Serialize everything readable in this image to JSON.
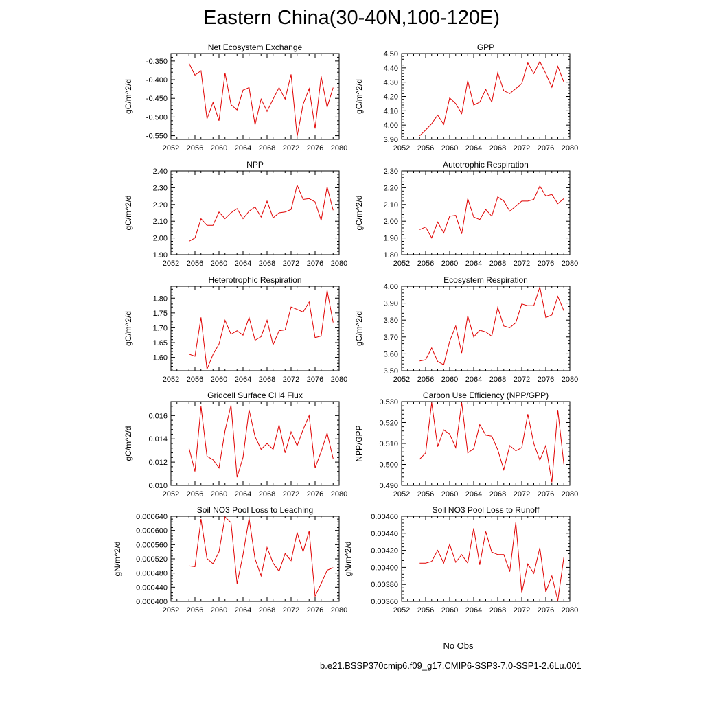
{
  "title": "Eastern China(30-40N,100-120E)",
  "legend": {
    "obs_label": "No Obs",
    "obs_color": "#2b2bd6",
    "run_label": "b.e21.BSSP370cmip6.f09_g17.CMIP6-SSP3-7.0-SSP1-2.6Lu.001",
    "run_color": "#e00000"
  },
  "chart_data": [
    {
      "type": "line",
      "title": "Net Ecosystem Exchange",
      "ylabel": "gC/m^2/d",
      "xlim": [
        2052,
        2080
      ],
      "ylim": [
        -0.56,
        -0.33
      ],
      "xticks": [
        "2052",
        "2056",
        "2060",
        "2064",
        "2068",
        "2072",
        "2076",
        "2080"
      ],
      "yticks": [
        "-0.550",
        "-0.500",
        "-0.450",
        "-0.400",
        "-0.350"
      ],
      "ytick_values": [
        -0.55,
        -0.5,
        -0.45,
        -0.4,
        -0.35
      ],
      "series": [
        {
          "color": "#e00000",
          "x": [
            2055,
            2056,
            2057,
            2058,
            2059,
            2060,
            2061,
            2062,
            2063,
            2064,
            2065,
            2066,
            2067,
            2068,
            2069,
            2070,
            2071,
            2072,
            2073,
            2074,
            2075,
            2076,
            2077,
            2078,
            2079
          ],
          "y": [
            -0.356,
            -0.388,
            -0.376,
            -0.505,
            -0.461,
            -0.51,
            -0.382,
            -0.467,
            -0.481,
            -0.428,
            -0.421,
            -0.521,
            -0.452,
            -0.485,
            -0.452,
            -0.421,
            -0.452,
            -0.386,
            -0.552,
            -0.466,
            -0.424,
            -0.531,
            -0.391,
            -0.474,
            -0.421
          ]
        }
      ]
    },
    {
      "type": "line",
      "title": "GPP",
      "ylabel": "gC/m^2/d",
      "xlim": [
        2052,
        2080
      ],
      "ylim": [
        3.9,
        4.5
      ],
      "xticks": [
        "2052",
        "2056",
        "2060",
        "2064",
        "2068",
        "2072",
        "2076",
        "2080"
      ],
      "yticks": [
        "3.90",
        "4.00",
        "4.10",
        "4.20",
        "4.30",
        "4.40",
        "4.50"
      ],
      "ytick_values": [
        3.9,
        4.0,
        4.1,
        4.2,
        4.3,
        4.4,
        4.5
      ],
      "series": [
        {
          "color": "#e00000",
          "x": [
            2055,
            2056,
            2057,
            2058,
            2059,
            2060,
            2061,
            2062,
            2063,
            2064,
            2065,
            2066,
            2067,
            2068,
            2069,
            2070,
            2071,
            2072,
            2073,
            2074,
            2075,
            2076,
            2077,
            2078,
            2079
          ],
          "y": [
            3.925,
            3.965,
            4.01,
            4.07,
            4.005,
            4.19,
            4.15,
            4.08,
            4.31,
            4.14,
            4.16,
            4.25,
            4.16,
            4.365,
            4.24,
            4.22,
            4.255,
            4.29,
            4.435,
            4.36,
            4.445,
            4.36,
            4.265,
            4.41,
            4.3
          ]
        }
      ]
    },
    {
      "type": "line",
      "title": "NPP",
      "ylabel": "gC/m^2/d",
      "xlim": [
        2052,
        2080
      ],
      "ylim": [
        1.9,
        2.4
      ],
      "xticks": [
        "2052",
        "2056",
        "2060",
        "2064",
        "2068",
        "2072",
        "2076",
        "2080"
      ],
      "yticks": [
        "1.90",
        "2.00",
        "2.10",
        "2.20",
        "2.30",
        "2.40"
      ],
      "ytick_values": [
        1.9,
        2.0,
        2.1,
        2.2,
        2.3,
        2.4
      ],
      "series": [
        {
          "color": "#e00000",
          "x": [
            2055,
            2056,
            2057,
            2058,
            2059,
            2060,
            2061,
            2062,
            2063,
            2064,
            2065,
            2066,
            2067,
            2068,
            2069,
            2070,
            2071,
            2072,
            2073,
            2074,
            2075,
            2076,
            2077,
            2078,
            2079
          ],
          "y": [
            1.98,
            2.0,
            2.115,
            2.075,
            2.075,
            2.155,
            2.115,
            2.15,
            2.175,
            2.115,
            2.16,
            2.185,
            2.125,
            2.22,
            2.12,
            2.15,
            2.155,
            2.17,
            2.315,
            2.23,
            2.235,
            2.215,
            2.105,
            2.305,
            2.165
          ]
        }
      ]
    },
    {
      "type": "line",
      "title": "Autotrophic Respiration",
      "ylabel": "gC/m^2/d",
      "xlim": [
        2052,
        2080
      ],
      "ylim": [
        1.8,
        2.3
      ],
      "xticks": [
        "2052",
        "2056",
        "2060",
        "2064",
        "2068",
        "2072",
        "2076",
        "2080"
      ],
      "yticks": [
        "1.80",
        "1.90",
        "2.00",
        "2.10",
        "2.20",
        "2.30"
      ],
      "ytick_values": [
        1.8,
        1.9,
        2.0,
        2.1,
        2.2,
        2.3
      ],
      "series": [
        {
          "color": "#e00000",
          "x": [
            2055,
            2056,
            2057,
            2058,
            2059,
            2060,
            2061,
            2062,
            2063,
            2064,
            2065,
            2066,
            2067,
            2068,
            2069,
            2070,
            2071,
            2072,
            2073,
            2074,
            2075,
            2076,
            2077,
            2078,
            2079
          ],
          "y": [
            1.95,
            1.965,
            1.9,
            1.995,
            1.93,
            2.03,
            2.035,
            1.925,
            2.135,
            2.025,
            2.01,
            2.07,
            2.03,
            2.145,
            2.12,
            2.06,
            2.09,
            2.12,
            2.12,
            2.13,
            2.21,
            2.15,
            2.16,
            2.105,
            2.135
          ]
        }
      ]
    },
    {
      "type": "line",
      "title": "Heterotrophic Respiration",
      "ylabel": "gC/m^2/d",
      "xlim": [
        2052,
        2080
      ],
      "ylim": [
        1.555,
        1.84
      ],
      "xticks": [
        "2052",
        "2056",
        "2060",
        "2064",
        "2068",
        "2072",
        "2076",
        "2080"
      ],
      "yticks": [
        "1.60",
        "1.65",
        "1.70",
        "1.75",
        "1.80"
      ],
      "ytick_values": [
        1.6,
        1.65,
        1.7,
        1.75,
        1.8
      ],
      "series": [
        {
          "color": "#e00000",
          "x": [
            2055,
            2056,
            2057,
            2058,
            2059,
            2060,
            2061,
            2062,
            2063,
            2064,
            2065,
            2066,
            2067,
            2068,
            2069,
            2070,
            2071,
            2072,
            2073,
            2074,
            2075,
            2076,
            2077,
            2078,
            2079
          ],
          "y": [
            1.611,
            1.604,
            1.735,
            1.56,
            1.61,
            1.645,
            1.725,
            1.678,
            1.69,
            1.675,
            1.735,
            1.658,
            1.67,
            1.725,
            1.643,
            1.69,
            1.693,
            1.77,
            1.762,
            1.753,
            1.787,
            1.667,
            1.672,
            1.826,
            1.718
          ]
        }
      ]
    },
    {
      "type": "line",
      "title": "Ecosystem Respiration",
      "ylabel": "gC/m^2/d",
      "xlim": [
        2052,
        2080
      ],
      "ylim": [
        3.5,
        4.0
      ],
      "xticks": [
        "2052",
        "2056",
        "2060",
        "2064",
        "2068",
        "2072",
        "2076",
        "2080"
      ],
      "yticks": [
        "3.50",
        "3.60",
        "3.70",
        "3.80",
        "3.90",
        "4.00"
      ],
      "ytick_values": [
        3.5,
        3.6,
        3.7,
        3.8,
        3.9,
        4.0
      ],
      "series": [
        {
          "color": "#e00000",
          "x": [
            2055,
            2056,
            2057,
            2058,
            2059,
            2060,
            2061,
            2062,
            2063,
            2064,
            2065,
            2066,
            2067,
            2068,
            2069,
            2070,
            2071,
            2072,
            2073,
            2074,
            2075,
            2076,
            2077,
            2078,
            2079
          ],
          "y": [
            3.558,
            3.565,
            3.635,
            3.555,
            3.535,
            3.675,
            3.765,
            3.605,
            3.825,
            3.7,
            3.74,
            3.73,
            3.705,
            3.875,
            3.765,
            3.755,
            3.785,
            3.895,
            3.885,
            3.885,
            3.995,
            3.815,
            3.83,
            3.94,
            3.855
          ]
        }
      ]
    },
    {
      "type": "line",
      "title": "Gridcell Surface CH4 Flux",
      "ylabel": "gC/m^2/d",
      "xlim": [
        2052,
        2080
      ],
      "ylim": [
        0.01,
        0.0172
      ],
      "xticks": [
        "2052",
        "2056",
        "2060",
        "2064",
        "2068",
        "2072",
        "2076",
        "2080"
      ],
      "yticks": [
        "0.010",
        "0.012",
        "0.014",
        "0.016"
      ],
      "ytick_values": [
        0.01,
        0.012,
        0.014,
        0.016
      ],
      "series": [
        {
          "color": "#e00000",
          "x": [
            2055,
            2056,
            2057,
            2058,
            2059,
            2060,
            2061,
            2062,
            2063,
            2064,
            2065,
            2066,
            2067,
            2068,
            2069,
            2070,
            2071,
            2072,
            2073,
            2074,
            2075,
            2076,
            2077,
            2078,
            2079
          ],
          "y": [
            0.0132,
            0.0112,
            0.0168,
            0.0125,
            0.0122,
            0.0115,
            0.0147,
            0.0169,
            0.0107,
            0.0124,
            0.0165,
            0.0142,
            0.0131,
            0.0136,
            0.0131,
            0.0152,
            0.0128,
            0.0146,
            0.0134,
            0.0148,
            0.016,
            0.0115,
            0.0129,
            0.0145,
            0.0123
          ]
        }
      ]
    },
    {
      "type": "line",
      "title": "Carbon Use Efficiency (NPP/GPP)",
      "ylabel": "NPP/GPP",
      "xlim": [
        2052,
        2080
      ],
      "ylim": [
        0.49,
        0.53
      ],
      "xticks": [
        "2052",
        "2056",
        "2060",
        "2064",
        "2068",
        "2072",
        "2076",
        "2080"
      ],
      "yticks": [
        "0.490",
        "0.500",
        "0.510",
        "0.520",
        "0.530"
      ],
      "ytick_values": [
        0.49,
        0.5,
        0.51,
        0.52,
        0.53
      ],
      "series": [
        {
          "color": "#e00000",
          "x": [
            2055,
            2056,
            2057,
            2058,
            2059,
            2060,
            2061,
            2062,
            2063,
            2064,
            2065,
            2066,
            2067,
            2068,
            2069,
            2070,
            2071,
            2072,
            2073,
            2074,
            2075,
            2076,
            2077,
            2078,
            2079
          ],
          "y": [
            0.5025,
            0.5055,
            0.5295,
            0.5085,
            0.5165,
            0.5145,
            0.508,
            0.5295,
            0.5055,
            0.5075,
            0.519,
            0.514,
            0.5135,
            0.507,
            0.4975,
            0.509,
            0.5065,
            0.508,
            0.524,
            0.51,
            0.502,
            0.509,
            0.4915,
            0.526,
            0.5
          ]
        }
      ]
    },
    {
      "type": "line",
      "title": "Soil NO3 Pool Loss to Leaching",
      "ylabel": "gN/m^2/d",
      "xlim": [
        2052,
        2080
      ],
      "ylim": [
        0.0004,
        0.00064
      ],
      "xticks": [
        "2052",
        "2056",
        "2060",
        "2064",
        "2068",
        "2072",
        "2076",
        "2080"
      ],
      "yticks": [
        "0.000400",
        "0.000440",
        "0.000480",
        "0.000520",
        "0.000560",
        "0.000600",
        "0.000640"
      ],
      "ytick_values": [
        0.0004,
        0.00044,
        0.00048,
        0.00052,
        0.00056,
        0.0006,
        0.00064
      ],
      "series": [
        {
          "color": "#e00000",
          "x": [
            2055,
            2056,
            2057,
            2058,
            2059,
            2060,
            2061,
            2062,
            2063,
            2064,
            2065,
            2066,
            2067,
            2068,
            2069,
            2070,
            2071,
            2072,
            2073,
            2074,
            2075,
            2076,
            2077,
            2078,
            2079
          ],
          "y": [
            0.0005,
            0.000498,
            0.000632,
            0.000521,
            0.000506,
            0.00054,
            0.000638,
            0.000622,
            0.00045,
            0.000532,
            0.000634,
            0.00052,
            0.000472,
            0.000552,
            0.000508,
            0.000485,
            0.000535,
            0.000515,
            0.000594,
            0.00054,
            0.000598,
            0.000415,
            0.00045,
            0.000488,
            0.000495
          ]
        }
      ]
    },
    {
      "type": "line",
      "title": "Soil NO3 Pool Loss to Runoff",
      "ylabel": "gN/m^2/d",
      "xlim": [
        2052,
        2080
      ],
      "ylim": [
        0.0036,
        0.0046
      ],
      "xticks": [
        "2052",
        "2056",
        "2060",
        "2064",
        "2068",
        "2072",
        "2076",
        "2080"
      ],
      "yticks": [
        "0.00360",
        "0.00380",
        "0.00400",
        "0.00420",
        "0.00440",
        "0.00460"
      ],
      "ytick_values": [
        0.0036,
        0.0038,
        0.004,
        0.0042,
        0.0044,
        0.0046
      ],
      "series": [
        {
          "color": "#e00000",
          "x": [
            2055,
            2056,
            2057,
            2058,
            2059,
            2060,
            2061,
            2062,
            2063,
            2064,
            2065,
            2066,
            2067,
            2068,
            2069,
            2070,
            2071,
            2072,
            2073,
            2074,
            2075,
            2076,
            2077,
            2078,
            2079
          ],
          "y": [
            0.00405,
            0.00405,
            0.00407,
            0.0042,
            0.00405,
            0.00427,
            0.00406,
            0.00415,
            0.00405,
            0.00446,
            0.00403,
            0.00442,
            0.00418,
            0.00415,
            0.00415,
            0.00395,
            0.00453,
            0.0037,
            0.00404,
            0.00393,
            0.00423,
            0.00371,
            0.0039,
            0.00361,
            0.00412
          ]
        }
      ]
    }
  ]
}
